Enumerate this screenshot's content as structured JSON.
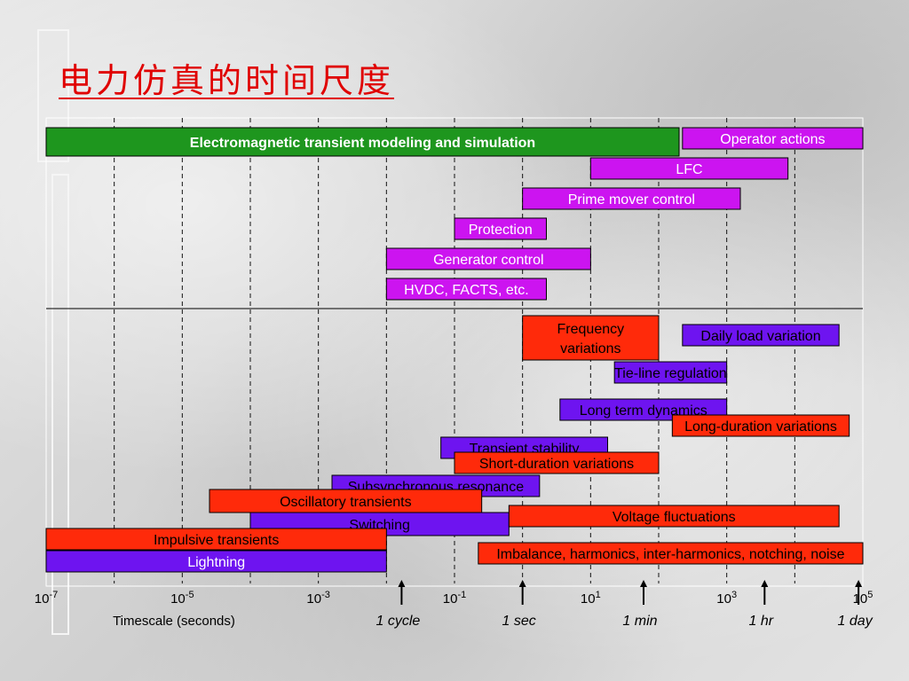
{
  "title": "电力仿真的时间尺度",
  "chart_data": {
    "type": "bar",
    "orientation": "horizontal-range",
    "x_scale": "log10",
    "xlim": [
      -7,
      5
    ],
    "xlabel": "Timescale (seconds)",
    "x_ticks": [
      {
        "exp": -7,
        "base": "10",
        "sup": "-7"
      },
      {
        "exp": -5,
        "base": "10",
        "sup": "-5"
      },
      {
        "exp": -3,
        "base": "10",
        "sup": "-3"
      },
      {
        "exp": -1,
        "base": "10",
        "sup": "-1"
      },
      {
        "exp": 1,
        "base": "10",
        "sup": "1"
      },
      {
        "exp": 3,
        "base": "10",
        "sup": "3"
      },
      {
        "exp": 5,
        "base": "10",
        "sup": "5"
      }
    ],
    "reference_marks": [
      {
        "label": "1 cycle",
        "seconds": 0.0167
      },
      {
        "label": "1 sec",
        "seconds": 1
      },
      {
        "label": "1 min",
        "seconds": 60
      },
      {
        "label": "1 hr",
        "seconds": 3600
      },
      {
        "label": "1 day",
        "seconds": 86400
      }
    ],
    "colors": {
      "green": "#1e961e",
      "magenta": "#cc14f0",
      "purple": "#6e14f0",
      "red": "#ff2a0a"
    },
    "groups": [
      {
        "name": "control",
        "bars": [
          {
            "label": "Electromagnetic transient modeling and simulation",
            "start": -7,
            "end": 2.3,
            "color": "green",
            "text_color": "#ffffff",
            "bold": true
          },
          {
            "label": "Operator actions",
            "start": 2.35,
            "end": 5.0,
            "color": "magenta",
            "text_color": "#ffffff"
          },
          {
            "label": "LFC",
            "start": 1.0,
            "end": 3.9,
            "color": "magenta",
            "text_color": "#ffffff"
          },
          {
            "label": "Prime mover control",
            "start": 0.0,
            "end": 3.2,
            "color": "magenta",
            "text_color": "#ffffff"
          },
          {
            "label": "Protection",
            "start": -1.0,
            "end": 0.35,
            "color": "magenta",
            "text_color": "#ffffff"
          },
          {
            "label": "Generator control",
            "start": -2.0,
            "end": 1.0,
            "color": "magenta",
            "text_color": "#ffffff"
          },
          {
            "label": "HVDC, FACTS, etc.",
            "start": -2.0,
            "end": 0.35,
            "color": "magenta",
            "text_color": "#ffffff"
          }
        ]
      },
      {
        "name": "phenomena",
        "bars": [
          {
            "label": "Frequency variations",
            "lines": [
              "Frequency",
              "variations"
            ],
            "start": 0.0,
            "end": 2.0,
            "color": "red",
            "text_color": "#000000"
          },
          {
            "label": "Daily load variation",
            "start": 2.35,
            "end": 4.65,
            "color": "purple",
            "text_color": "#000000"
          },
          {
            "label": "Tie-line regulation",
            "start": 1.35,
            "end": 3.0,
            "color": "purple",
            "text_color": "#000000"
          },
          {
            "label": "Long term dynamics",
            "start": 0.55,
            "end": 3.0,
            "color": "purple",
            "text_color": "#000000"
          },
          {
            "label": "Long-duration variations",
            "start": 2.2,
            "end": 4.8,
            "color": "red",
            "text_color": "#000000"
          },
          {
            "label": "Transient stability",
            "start": -1.2,
            "end": 1.25,
            "color": "purple",
            "text_color": "#000000"
          },
          {
            "label": "Short-duration variations",
            "start": -1.0,
            "end": 2.0,
            "color": "red",
            "text_color": "#000000"
          },
          {
            "label": "Subsynchronous resonance",
            "start": -2.8,
            "end": 0.25,
            "color": "purple",
            "text_color": "#000000"
          },
          {
            "label": "Oscillatory transients",
            "start": -4.6,
            "end": -0.6,
            "color": "red",
            "text_color": "#000000"
          },
          {
            "label": "Switching",
            "start": -4.0,
            "end": -0.2,
            "color": "purple",
            "text_color": "#000000"
          },
          {
            "label": "Voltage fluctuations",
            "start": -0.2,
            "end": 4.65,
            "color": "red",
            "text_color": "#000000"
          },
          {
            "label": "Impulsive transients",
            "start": -7.0,
            "end": -2.0,
            "color": "red",
            "text_color": "#000000"
          },
          {
            "label": "Imbalance, harmonics, inter-harmonics, notching, noise",
            "start": -0.65,
            "end": 5.0,
            "color": "red",
            "text_color": "#000000"
          },
          {
            "label": "Lightning",
            "start": -7.0,
            "end": -2.0,
            "color": "purple",
            "text_color": "#ffffff"
          }
        ]
      }
    ]
  }
}
